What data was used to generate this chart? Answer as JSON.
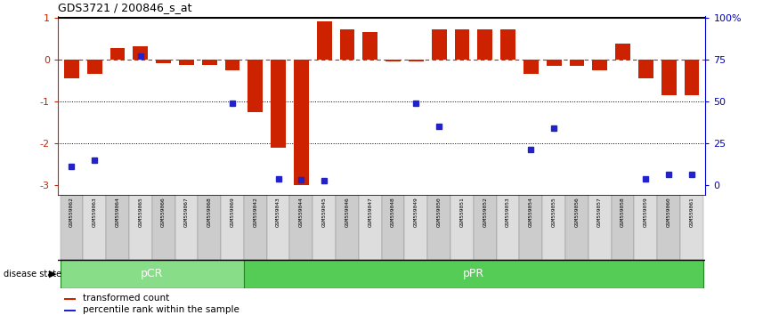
{
  "title": "GDS3721 / 200846_s_at",
  "samples": [
    "GSM559062",
    "GSM559063",
    "GSM559064",
    "GSM559065",
    "GSM559066",
    "GSM559067",
    "GSM559068",
    "GSM559069",
    "GSM559042",
    "GSM559043",
    "GSM559044",
    "GSM559045",
    "GSM559046",
    "GSM559047",
    "GSM559048",
    "GSM559049",
    "GSM559050",
    "GSM559051",
    "GSM559052",
    "GSM559053",
    "GSM559054",
    "GSM559055",
    "GSM559056",
    "GSM559057",
    "GSM559058",
    "GSM559059",
    "GSM559060",
    "GSM559061"
  ],
  "red_bars": [
    -0.45,
    -0.35,
    0.27,
    0.32,
    -0.08,
    -0.13,
    -0.12,
    -0.25,
    -1.25,
    -2.1,
    -3.0,
    0.92,
    0.72,
    0.65,
    -0.05,
    -0.05,
    0.72,
    0.72,
    0.72,
    0.72,
    -0.35,
    -0.15,
    -0.15,
    -0.25,
    0.38,
    -0.45,
    -0.85,
    -0.85
  ],
  "blue_dots": [
    -2.55,
    -2.4,
    null,
    0.08,
    null,
    null,
    null,
    -1.05,
    null,
    -2.85,
    -2.88,
    -2.9,
    null,
    null,
    null,
    -1.05,
    -1.6,
    null,
    null,
    null,
    -2.15,
    -1.65,
    null,
    null,
    null,
    -2.85,
    -2.75,
    -2.75
  ],
  "groups": [
    {
      "label": "pCR",
      "start": 0,
      "end": 8,
      "color": "#88DD88"
    },
    {
      "label": "pPR",
      "start": 8,
      "end": 28,
      "color": "#55CC55"
    }
  ],
  "ylim": [
    -3.25,
    1.05
  ],
  "yticks_left": [
    -3,
    -2,
    -1,
    0,
    1
  ],
  "hlines": [
    -1,
    -2
  ],
  "bar_color": "#CC2200",
  "dot_color": "#2222CC",
  "legend_red": "transformed count",
  "legend_blue": "percentile rank within the sample",
  "right_ticks_pct": [
    0,
    25,
    50,
    75,
    100
  ],
  "right_ticks_y": [
    -3.0,
    -2.0,
    -1.0,
    0.0,
    1.0
  ]
}
